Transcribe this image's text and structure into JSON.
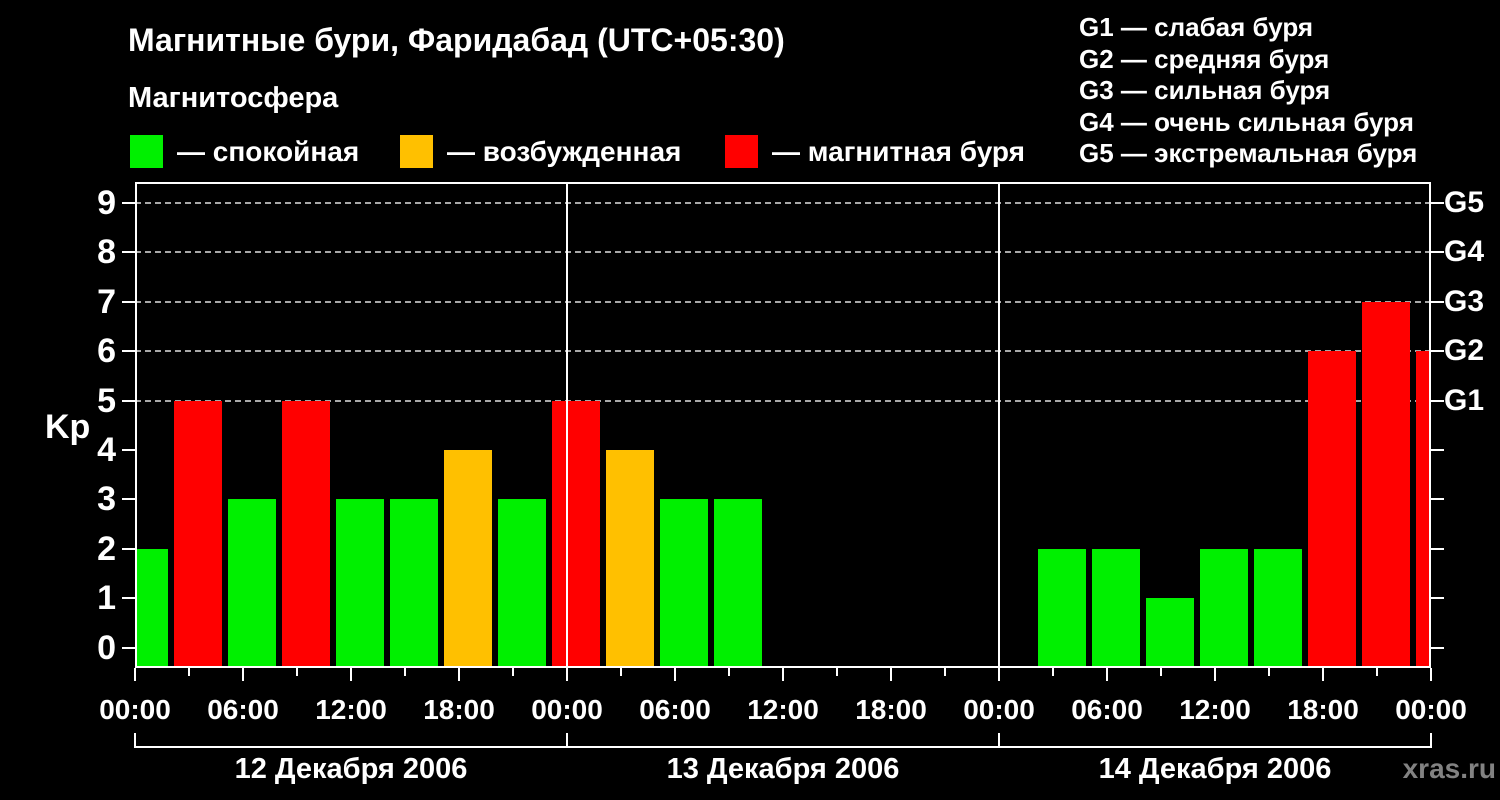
{
  "header": {
    "title": "Магнитные бури, Фаридабад (UTC+05:30)",
    "subtitle": "Магнитосфера"
  },
  "legend": {
    "items": [
      {
        "label": "— спокойная",
        "category": "quiet",
        "color": "#00f000",
        "x": 130
      },
      {
        "label": "— возбужденная",
        "category": "unsettled",
        "color": "#ffc000",
        "x": 400
      },
      {
        "label": "— магнитная буря",
        "category": "storm",
        "color": "#ff0000",
        "x": 725
      }
    ]
  },
  "storm_legend": {
    "items": [
      "G1 — слабая буря",
      "G2 — средняя буря",
      "G3 — сильная буря",
      "G4 — очень сильная буря",
      "G5 — экстремальная буря"
    ]
  },
  "watermark": "xras.ru",
  "chart_data": {
    "type": "bar",
    "title": "Магнитные бури, Фаридабад (UTC+05:30)",
    "ylabel": "Kp",
    "ylim": [
      0,
      9
    ],
    "y_ticks": [
      0,
      1,
      2,
      3,
      4,
      5,
      6,
      7,
      8,
      9
    ],
    "grid_levels": [
      5,
      6,
      7,
      8,
      9
    ],
    "grid_style": "dashed",
    "legend_position": "top",
    "right_axis": [
      {
        "label": "G1",
        "kp": 5
      },
      {
        "label": "G2",
        "kp": 6
      },
      {
        "label": "G3",
        "kp": 7
      },
      {
        "label": "G4",
        "kp": 8
      },
      {
        "label": "G5",
        "kp": 9
      }
    ],
    "x_axis": {
      "hours_span": 72,
      "major_tick_every_h": 6,
      "minor_tick_every_h": 3,
      "time_labels_cycle": [
        "00:00",
        "06:00",
        "12:00",
        "18:00"
      ]
    },
    "days": [
      {
        "label": "12 Декабря 2006"
      },
      {
        "label": "13 Декабря 2006"
      },
      {
        "label": "14 Декабря 2006"
      }
    ],
    "bar_interval_hours": 3,
    "bars": [
      {
        "start_hour": -1,
        "kp": 2
      },
      {
        "start_hour": 2,
        "kp": 5
      },
      {
        "start_hour": 5,
        "kp": 3
      },
      {
        "start_hour": 8,
        "kp": 5
      },
      {
        "start_hour": 11,
        "kp": 3
      },
      {
        "start_hour": 14,
        "kp": 3
      },
      {
        "start_hour": 17,
        "kp": 4
      },
      {
        "start_hour": 20,
        "kp": 3
      },
      {
        "start_hour": 23,
        "kp": 5
      },
      {
        "start_hour": 26,
        "kp": 4
      },
      {
        "start_hour": 29,
        "kp": 3
      },
      {
        "start_hour": 32,
        "kp": 3
      },
      {
        "start_hour": 50,
        "kp": 2
      },
      {
        "start_hour": 53,
        "kp": 2
      },
      {
        "start_hour": 56,
        "kp": 1
      },
      {
        "start_hour": 59,
        "kp": 2
      },
      {
        "start_hour": 62,
        "kp": 2
      },
      {
        "start_hour": 65,
        "kp": 6
      },
      {
        "start_hour": 68,
        "kp": 7
      },
      {
        "start_hour": 71,
        "kp": 6
      }
    ],
    "color_rules": {
      "quiet_max_kp": 3,
      "unsettled_kp": 4,
      "storm_min_kp": 5,
      "quiet_color": "#00f000",
      "unsettled_color": "#ffc000",
      "storm_color": "#ff0000"
    }
  }
}
